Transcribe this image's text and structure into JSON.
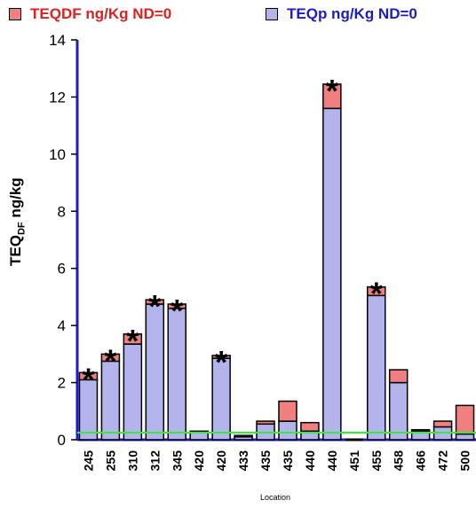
{
  "legend": [
    {
      "label": "TEQDF ng/Kg ND=0",
      "color": "#f08080",
      "text_color": "#e02020"
    },
    {
      "label": "TEQp ng/Kg ND=0",
      "color": "#b4b4ec",
      "text_color": "#1c1cc8"
    }
  ],
  "chart_data": {
    "type": "bar",
    "stacked": true,
    "categories": [
      "245",
      "255",
      "310",
      "312",
      "345",
      "420",
      "420",
      "433",
      "435",
      "435",
      "440",
      "440",
      "451",
      "455",
      "458",
      "466",
      "472",
      "500"
    ],
    "series": [
      {
        "name": "TEQp ng/Kg ND=0",
        "color": "#b4b4ec",
        "values": [
          2.1,
          2.75,
          3.35,
          4.75,
          4.6,
          0.25,
          2.85,
          0.1,
          0.55,
          0.65,
          0.3,
          11.6,
          0.0,
          5.05,
          2.0,
          0.3,
          0.45,
          0.2
        ]
      },
      {
        "name": "TEQDF ng/Kg ND=0",
        "color": "#f08080",
        "values": [
          0.25,
          0.25,
          0.35,
          0.15,
          0.15,
          0.05,
          0.1,
          0.05,
          0.1,
          0.7,
          0.3,
          0.85,
          0.0,
          0.3,
          0.45,
          0.05,
          0.2,
          1.0
        ]
      }
    ],
    "significant": [
      "245",
      "255",
      "310",
      "312",
      "345",
      "420",
      "440",
      "455"
    ],
    "significant_indices": [
      0,
      1,
      2,
      3,
      4,
      6,
      11,
      13
    ],
    "marker": "*",
    "reference_line": {
      "value": 0.25,
      "color": "#33ee33"
    },
    "ylim": [
      0,
      14
    ],
    "yticks": [
      0,
      2,
      4,
      6,
      8,
      10,
      12,
      14
    ],
    "ylabel_main": "TEQ",
    "ylabel_sub": "DF",
    "ylabel_unit": " ng/kg",
    "xlabel": "Location",
    "axis_color": "#1c1cc8"
  }
}
